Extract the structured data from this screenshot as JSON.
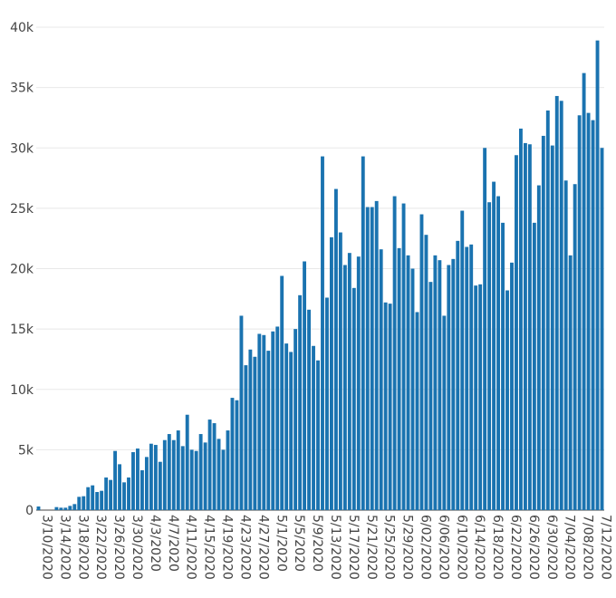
{
  "chart_data": {
    "type": "bar",
    "title": "",
    "xlabel": "",
    "ylabel": "",
    "ylim": [
      0,
      40000
    ],
    "grid": true,
    "bar_color": "#1a73b0",
    "y_ticks": [
      {
        "value": 0,
        "label": "0"
      },
      {
        "value": 5000,
        "label": "5k"
      },
      {
        "value": 10000,
        "label": "10k"
      },
      {
        "value": 15000,
        "label": "15k"
      },
      {
        "value": 20000,
        "label": "20k"
      },
      {
        "value": 25000,
        "label": "25k"
      },
      {
        "value": 30000,
        "label": "30k"
      },
      {
        "value": 35000,
        "label": "35k"
      },
      {
        "value": 40000,
        "label": "40k"
      }
    ],
    "x_tick_labels": [
      "3/10/2020",
      "3/14/2020",
      "3/18/2020",
      "3/22/2020",
      "3/26/2020",
      "3/30/2020",
      "4/3/2020",
      "4/7/2020",
      "4/11/2020",
      "4/15/2020",
      "4/19/2020",
      "4/23/2020",
      "4/27/2020",
      "5/1/2020",
      "5/5/2020",
      "5/9/2020",
      "5/13/2020",
      "5/17/2020",
      "5/21/2020",
      "5/25/2020",
      "5/29/2020",
      "6/02/2020",
      "6/06/2020",
      "6/10/2020",
      "6/14/2020",
      "6/18/2020",
      "6/22/2020",
      "6/26/2020",
      "6/30/2020",
      "7/04/2020",
      "7/08/2020",
      "7/12/2020"
    ],
    "start_date": "2020-03-10",
    "values": [
      300,
      0,
      0,
      0,
      250,
      200,
      200,
      350,
      500,
      1100,
      1150,
      1900,
      2050,
      1500,
      1600,
      2700,
      2500,
      4900,
      3800,
      2300,
      2700,
      4800,
      5100,
      3300,
      4400,
      5500,
      5400,
      4000,
      5800,
      6300,
      5800,
      6600,
      5300,
      7900,
      5000,
      4900,
      6300,
      5600,
      7500,
      7200,
      5900,
      5000,
      6600,
      9300,
      9100,
      16100,
      12000,
      13300,
      12700,
      14600,
      14500,
      13200,
      14800,
      15200,
      19400,
      13800,
      13100,
      15000,
      17800,
      20600,
      16600,
      13600,
      12400,
      29300,
      17600,
      22600,
      26600,
      23000,
      20300,
      21300,
      18400,
      21000,
      29300,
      25100,
      25100,
      25600,
      21600,
      17200,
      17100,
      26000,
      21700,
      25400,
      21100,
      20000,
      16400,
      24500,
      22800,
      18900,
      21100,
      20700,
      16100,
      20300,
      20800,
      22300,
      24800,
      21800,
      22000,
      18600,
      18700,
      30000,
      25500,
      27200,
      26000,
      23800,
      18200,
      20500,
      29400,
      31600,
      30400,
      30300,
      23800,
      26900,
      31000,
      33100,
      30200,
      34300,
      33900,
      27300,
      21100,
      27000,
      32700,
      36200,
      32900,
      32300,
      38900,
      30000
    ]
  }
}
